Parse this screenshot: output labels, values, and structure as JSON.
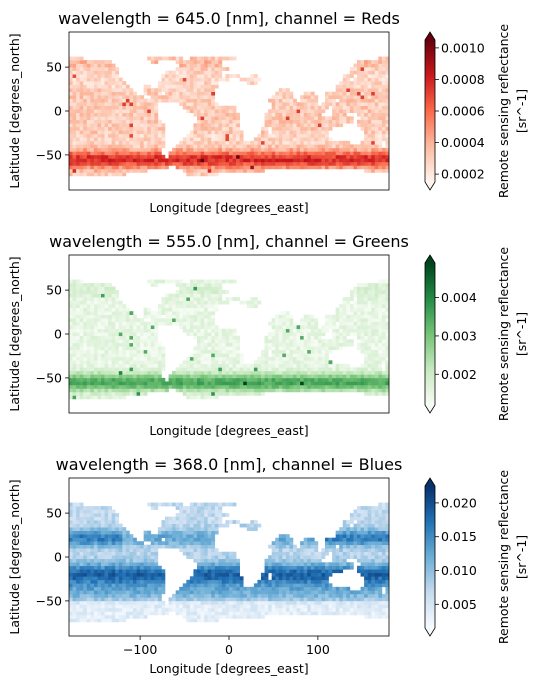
{
  "chart_data": [
    {
      "type": "heatmap",
      "title": "wavelength = 645.0 [nm], channel = Reds",
      "xlabel": "Longitude [degrees_east]",
      "ylabel": "Latitude [degrees_north]",
      "xlim": [
        -180,
        180
      ],
      "ylim": [
        -90,
        90
      ],
      "xticks": [],
      "yticks": [
        50,
        0,
        -50
      ],
      "colormap": "Reds",
      "colormap_stops": [
        "#fff5f0",
        "#fcbba1",
        "#fb6a4a",
        "#cb181d",
        "#67000d"
      ],
      "colorbar": {
        "label": "Remote sensing reflectance\n[sr^-1]",
        "range": [
          0.00015,
          0.00105
        ],
        "ticks": [
          0.0002,
          0.0004,
          0.0006,
          0.0008,
          0.001
        ],
        "tick_labels": [
          "0.0002",
          "0.0004",
          "0.0006",
          "0.0008",
          "0.0010"
        ],
        "extend": "both"
      },
      "field": "red"
    },
    {
      "type": "heatmap",
      "title": "wavelength = 555.0 [nm], channel = Greens",
      "xlabel": "Longitude [degrees_east]",
      "ylabel": "Latitude [degrees_north]",
      "xlim": [
        -180,
        180
      ],
      "ylim": [
        -90,
        90
      ],
      "xticks": [],
      "yticks": [
        50,
        0,
        -50
      ],
      "colormap": "Greens",
      "colormap_stops": [
        "#f7fcf5",
        "#c7e9c0",
        "#74c476",
        "#238b45",
        "#00441b"
      ],
      "colorbar": {
        "label": "Remote sensing reflectance\n[sr^-1]",
        "range": [
          0.0012,
          0.0049
        ],
        "ticks": [
          0.002,
          0.003,
          0.004
        ],
        "tick_labels": [
          "0.002",
          "0.003",
          "0.004"
        ],
        "extend": "both"
      },
      "field": "green"
    },
    {
      "type": "heatmap",
      "title": "wavelength = 368.0 [nm], channel = Blues",
      "xlabel": "Longitude [degrees_east]",
      "ylabel": "Latitude [degrees_north]",
      "xlim": [
        -180,
        180
      ],
      "ylim": [
        -90,
        90
      ],
      "xticks": [
        -100,
        0,
        100
      ],
      "yticks": [
        50,
        0,
        -50
      ],
      "colormap": "Blues",
      "colormap_stops": [
        "#f7fbff",
        "#c6dbef",
        "#6baed6",
        "#2171b5",
        "#08306b"
      ],
      "colorbar": {
        "label": "Remote sensing reflectance\n[sr^-1]",
        "range": [
          0.0015,
          0.0225
        ],
        "ticks": [
          0.005,
          0.01,
          0.015,
          0.02
        ],
        "tick_labels": [
          "0.005",
          "0.010",
          "0.015",
          "0.020"
        ],
        "extend": "both"
      },
      "field": "blue"
    }
  ]
}
